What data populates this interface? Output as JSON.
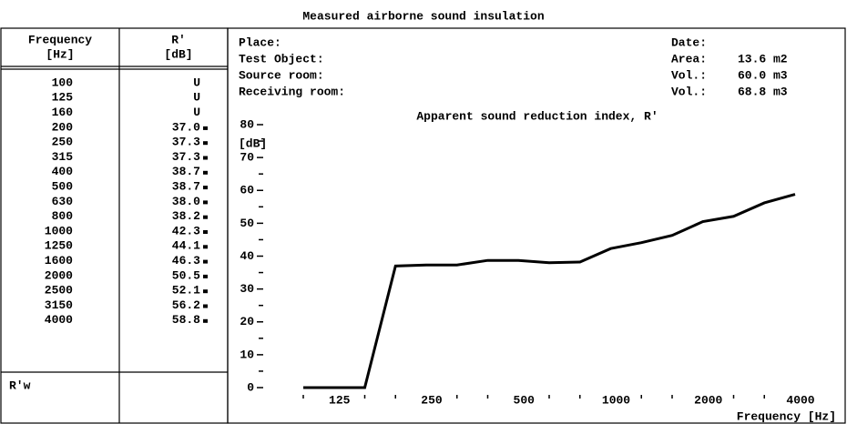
{
  "title": "Measured airborne sound insulation",
  "table": {
    "header": [
      "Frequency",
      "[Hz]",
      "R'",
      "[dB]"
    ],
    "rows": [
      [
        "100",
        "U"
      ],
      [
        "125",
        "U"
      ],
      [
        "160",
        "U"
      ],
      [
        "200",
        "37.0"
      ],
      [
        "250",
        "37.3"
      ],
      [
        "315",
        "37.3"
      ],
      [
        "400",
        "38.7"
      ],
      [
        "500",
        "38.7"
      ],
      [
        "630",
        "38.0"
      ],
      [
        "800",
        "38.2"
      ],
      [
        "1000",
        "42.3"
      ],
      [
        "1250",
        "44.1"
      ],
      [
        "1600",
        "46.3"
      ],
      [
        "2000",
        "50.5"
      ],
      [
        "2500",
        "52.1"
      ],
      [
        "3150",
        "56.2"
      ],
      [
        "4000",
        "58.8"
      ]
    ],
    "footer": "R'w"
  },
  "info": {
    "left": [
      "Place:",
      "Test Object:",
      "Source room:",
      "Receiving room:"
    ],
    "right": [
      [
        "Date:",
        ""
      ],
      [
        "Area:",
        "13.6 m2"
      ],
      [
        "Vol.:",
        "60.0 m3"
      ],
      [
        "Vol.:",
        "68.8 m3"
      ]
    ]
  },
  "chart_data": {
    "type": "line",
    "title": "Apparent sound reduction index, R'",
    "y_label": "[dB]",
    "x_label": "Frequency  [Hz]",
    "categories": [
      null,
      "125",
      null,
      null,
      "250",
      null,
      null,
      "500",
      null,
      null,
      "1000",
      null,
      null,
      "2000",
      null,
      null,
      "4000"
    ],
    "values": [
      0,
      0,
      0,
      37.0,
      37.3,
      37.3,
      38.7,
      38.7,
      38.0,
      38.2,
      42.3,
      44.1,
      46.3,
      50.5,
      52.1,
      56.2,
      58.8
    ],
    "color": "#000000",
    "ylim": [
      0,
      80
    ],
    "yticks": [
      0,
      10,
      20,
      30,
      40,
      50,
      60,
      70,
      80
    ]
  }
}
